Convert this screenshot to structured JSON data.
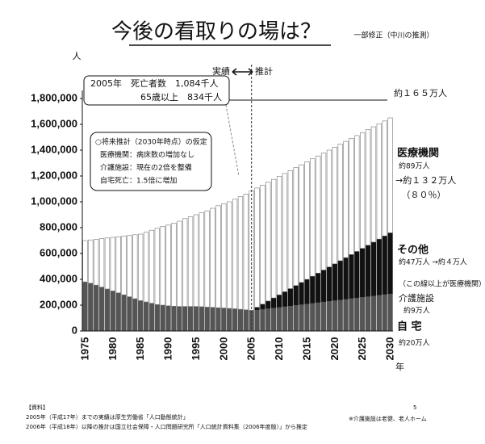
{
  "chart_data": {
    "type": "stacked_bar",
    "title": "今後の看取りの場は？",
    "subtitle": "一部修正（中川の推測）",
    "y_unit": "人",
    "x_unit": "年",
    "categories": [
      "1975",
      null,
      null,
      null,
      null,
      "1980",
      null,
      null,
      null,
      null,
      "1985",
      null,
      null,
      null,
      null,
      "1990",
      null,
      null,
      null,
      null,
      "1995",
      null,
      null,
      null,
      null,
      "2000",
      null,
      null,
      null,
      null,
      "2005",
      null,
      null,
      null,
      null,
      "2010",
      null,
      null,
      null,
      null,
      "2015",
      null,
      null,
      null,
      null,
      "2020",
      null,
      null,
      null,
      null,
      "2025",
      null,
      null,
      null,
      null,
      "2030"
    ],
    "series": [
      {
        "name": "自 宅",
        "color": "#555555",
        "values": [
          380000,
          370000,
          355000,
          340000,
          325000,
          310000,
          295000,
          280000,
          265000,
          250000,
          235000,
          225000,
          215000,
          205000,
          200000,
          195000,
          192000,
          190000,
          190000,
          190000,
          190000,
          188000,
          185000,
          183000,
          180000,
          178000,
          175000,
          172000,
          168000,
          164000,
          160000,
          165000,
          170000,
          176000,
          181000,
          186000,
          191000,
          196000,
          202000,
          207000,
          212000,
          217000,
          222000,
          228000,
          233000,
          238000,
          243000,
          248000,
          254000,
          259000,
          264000,
          269000,
          274000,
          280000,
          285000,
          290000
        ]
      },
      {
        "name": "その他",
        "color": "#111111",
        "values": [
          0,
          0,
          0,
          0,
          0,
          0,
          0,
          0,
          0,
          0,
          0,
          0,
          0,
          0,
          0,
          0,
          0,
          0,
          0,
          0,
          0,
          0,
          0,
          0,
          0,
          0,
          0,
          0,
          0,
          0,
          0,
          19000,
          38000,
          56000,
          75000,
          94000,
          113000,
          132000,
          150000,
          169000,
          188000,
          207000,
          226000,
          244000,
          263000,
          282000,
          301000,
          320000,
          338000,
          357000,
          376000,
          395000,
          414000,
          432000,
          451000,
          470000
        ]
      },
      {
        "name": "医療機関",
        "color": "#ffffff",
        "values": [
          320000,
          335000,
          355000,
          375000,
          395000,
          415000,
          435000,
          455000,
          475000,
          495000,
          515000,
          540000,
          565000,
          590000,
          610000,
          625000,
          643000,
          660000,
          680000,
          695000,
          710000,
          727000,
          745000,
          767000,
          790000,
          807000,
          825000,
          848000,
          872000,
          896000,
          924000,
          923000,
          921000,
          920000,
          918000,
          917000,
          916000,
          914000,
          913000,
          911000,
          910000,
          909000,
          907000,
          906000,
          904000,
          903000,
          902000,
          900000,
          899000,
          897000,
          896000,
          895000,
          893000,
          892000,
          890000,
          890000
        ]
      }
    ],
    "ylim": [
      0,
      1800000
    ],
    "yticks": [
      0,
      {
        "value": 200000,
        "label": "200,000"
      },
      {
        "value": 400000,
        "label": "400,000"
      },
      {
        "value": 600000,
        "label": "600,000"
      },
      {
        "value": 800000,
        "label": "800,000"
      },
      {
        "value": 1000000,
        "label": "1,000,000"
      },
      {
        "value": 1200000,
        "label": "1,200,000"
      },
      {
        "value": 1400000,
        "label": "1,400,000"
      },
      {
        "value": 1600000,
        "label": "1,600,000"
      },
      {
        "value": 1800000,
        "label": "1,800,000"
      }
    ],
    "annotations": [
      "実績",
      "推計",
      "2005年　死亡者数　1,084千人",
      "65歳以上　834千人",
      "約１６５万人",
      "○将来推計（2030年時点）の仮定",
      "医療機関：病床数の増加なし",
      "介護施設：現在の2倍を整備",
      "自宅死亡：1.5倍に増加",
      "約89万人",
      "→約１３２万人",
      "（８０％）",
      "約47万人 →約４万人",
      "（この線以上が医療機関）",
      "介護施設",
      "約9万人",
      "約20万人"
    ],
    "footer": [
      "【資料】",
      "2005年（平成17年）までの実績は厚生労働省「人口動態統計」",
      "2006年（平成18年）以降の推計は国立社会保障・人口問題研究所「人口統計資料集（2006年度版）」から推定",
      "5",
      "※介護施設は老健、老人ホーム"
    ]
  }
}
